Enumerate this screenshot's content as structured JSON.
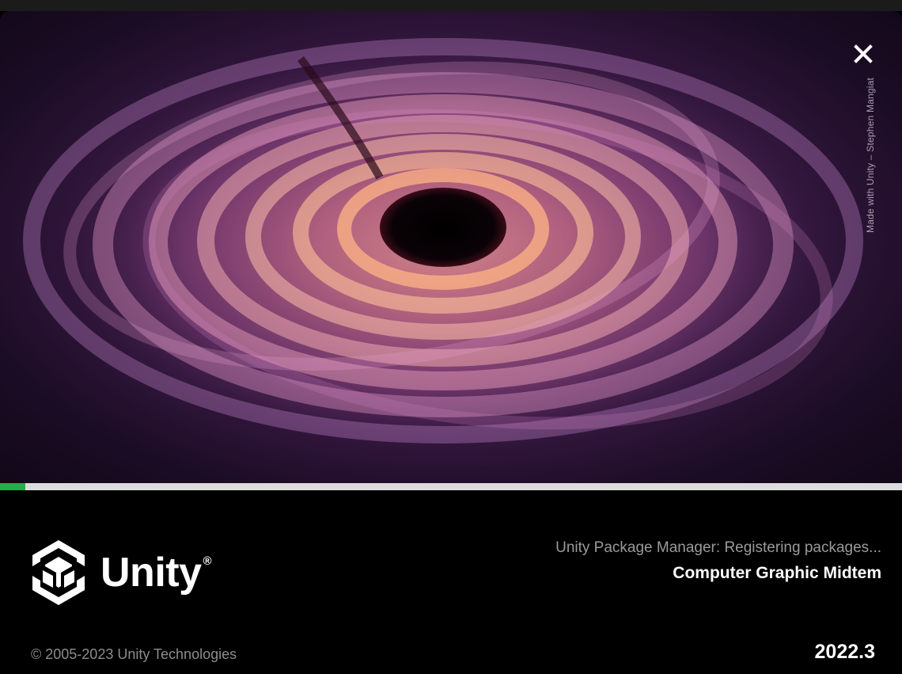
{
  "window": {
    "artwork_credit": "Made with Unity – Stephen Mangiat",
    "close_icon": "close-icon"
  },
  "progress": {
    "fraction": 0.028,
    "fill_color": "#22b04a"
  },
  "brand": {
    "name": "Unity",
    "registered_mark": "®",
    "logo_icon": "unity-cube-logo"
  },
  "status": {
    "message": "Unity Package Manager: Registering packages...",
    "project_name": "Computer Graphic Midtem"
  },
  "footer": {
    "copyright": "© 2005-2023 Unity Technologies",
    "version": "2022.3"
  }
}
